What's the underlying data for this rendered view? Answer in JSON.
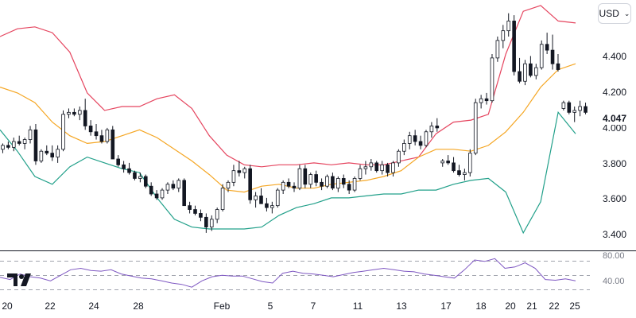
{
  "currency_selector": {
    "label": "USD"
  },
  "colors": {
    "upper_band": "#e5455f",
    "basis": "#f5a623",
    "lower_band": "#22a08a",
    "rsi": "#7e57c2",
    "candle": "#131722"
  },
  "chart_data": {
    "type": "candlestick",
    "x_ticks": [
      "20",
      "22",
      "24",
      "28",
      "Feb",
      "5",
      "7",
      "11",
      "13",
      "17",
      "18",
      "20",
      "21",
      "22",
      "25"
    ],
    "y_ticks": [
      "3.400",
      "3.600",
      "3.800",
      "4.000",
      "4.200",
      "4.400"
    ],
    "ylim": [
      3.36,
      4.62
    ],
    "last_price": "4.047",
    "candles_ohlc": [
      [
        3.86,
        3.89,
        3.84,
        3.88
      ],
      [
        3.88,
        3.9,
        3.86,
        3.87
      ],
      [
        3.87,
        3.92,
        3.85,
        3.9
      ],
      [
        3.9,
        3.93,
        3.88,
        3.89
      ],
      [
        3.89,
        3.92,
        3.86,
        3.91
      ],
      [
        3.91,
        3.98,
        3.89,
        3.96
      ],
      [
        3.96,
        3.99,
        3.78,
        3.8
      ],
      [
        3.8,
        3.86,
        3.79,
        3.85
      ],
      [
        3.85,
        3.88,
        3.83,
        3.84
      ],
      [
        3.84,
        3.88,
        3.8,
        3.82
      ],
      [
        3.82,
        3.88,
        3.79,
        3.86
      ],
      [
        3.86,
        4.06,
        3.85,
        4.04
      ],
      [
        4.04,
        4.07,
        4.02,
        4.05
      ],
      [
        4.05,
        4.07,
        4.03,
        4.04
      ],
      [
        4.04,
        4.08,
        4.01,
        4.06
      ],
      [
        4.06,
        4.12,
        3.96,
        3.98
      ],
      [
        3.98,
        4.01,
        3.93,
        3.95
      ],
      [
        3.95,
        3.99,
        3.91,
        3.93
      ],
      [
        3.93,
        3.96,
        3.89,
        3.9
      ],
      [
        3.9,
        3.97,
        3.89,
        3.96
      ],
      [
        3.96,
        3.98,
        3.84,
        3.81
      ],
      [
        3.81,
        3.83,
        3.77,
        3.78
      ],
      [
        3.78,
        3.8,
        3.74,
        3.76
      ],
      [
        3.76,
        3.79,
        3.73,
        3.74
      ],
      [
        3.74,
        3.75,
        3.7,
        3.71
      ],
      [
        3.71,
        3.74,
        3.69,
        3.72
      ],
      [
        3.72,
        3.73,
        3.66,
        3.67
      ],
      [
        3.67,
        3.69,
        3.62,
        3.63
      ],
      [
        3.63,
        3.65,
        3.6,
        3.61
      ],
      [
        3.61,
        3.66,
        3.6,
        3.65
      ],
      [
        3.65,
        3.69,
        3.63,
        3.68
      ],
      [
        3.68,
        3.7,
        3.65,
        3.66
      ],
      [
        3.66,
        3.71,
        3.64,
        3.7
      ],
      [
        3.7,
        3.71,
        3.6,
        3.57
      ],
      [
        3.57,
        3.59,
        3.53,
        3.55
      ],
      [
        3.55,
        3.57,
        3.52,
        3.53
      ],
      [
        3.53,
        3.55,
        3.49,
        3.51
      ],
      [
        3.51,
        3.53,
        3.43,
        3.46
      ],
      [
        3.46,
        3.52,
        3.44,
        3.5
      ],
      [
        3.5,
        3.56,
        3.48,
        3.55
      ],
      [
        3.55,
        3.68,
        3.54,
        3.66
      ],
      [
        3.66,
        3.7,
        3.64,
        3.69
      ],
      [
        3.69,
        3.78,
        3.67,
        3.75
      ],
      [
        3.75,
        3.8,
        3.72,
        3.74
      ],
      [
        3.74,
        3.77,
        3.71,
        3.76
      ],
      [
        3.76,
        3.78,
        3.58,
        3.6
      ],
      [
        3.6,
        3.64,
        3.56,
        3.62
      ],
      [
        3.62,
        3.66,
        3.6,
        3.58
      ],
      [
        3.58,
        3.61,
        3.54,
        3.56
      ],
      [
        3.56,
        3.59,
        3.53,
        3.57
      ],
      [
        3.57,
        3.66,
        3.56,
        3.65
      ],
      [
        3.65,
        3.7,
        3.63,
        3.69
      ],
      [
        3.69,
        3.71,
        3.66,
        3.67
      ],
      [
        3.67,
        3.69,
        3.64,
        3.66
      ],
      [
        3.66,
        3.78,
        3.65,
        3.76
      ],
      [
        3.76,
        3.78,
        3.66,
        3.68
      ],
      [
        3.68,
        3.74,
        3.66,
        3.73
      ],
      [
        3.73,
        3.75,
        3.67,
        3.69
      ],
      [
        3.69,
        3.71,
        3.65,
        3.67
      ],
      [
        3.67,
        3.73,
        3.66,
        3.72
      ],
      [
        3.72,
        3.74,
        3.65,
        3.66
      ],
      [
        3.66,
        3.72,
        3.64,
        3.71
      ],
      [
        3.71,
        3.73,
        3.66,
        3.68
      ],
      [
        3.68,
        3.7,
        3.63,
        3.65
      ],
      [
        3.65,
        3.72,
        3.64,
        3.71
      ],
      [
        3.71,
        3.78,
        3.7,
        3.76
      ],
      [
        3.76,
        3.8,
        3.73,
        3.77
      ],
      [
        3.77,
        3.81,
        3.75,
        3.79
      ],
      [
        3.79,
        3.8,
        3.74,
        3.75
      ],
      [
        3.75,
        3.8,
        3.73,
        3.78
      ],
      [
        3.78,
        3.79,
        3.72,
        3.74
      ],
      [
        3.74,
        3.8,
        3.72,
        3.79
      ],
      [
        3.79,
        3.86,
        3.77,
        3.85
      ],
      [
        3.85,
        3.91,
        3.83,
        3.89
      ],
      [
        3.89,
        3.95,
        3.86,
        3.93
      ],
      [
        3.93,
        3.96,
        3.88,
        3.9
      ],
      [
        3.9,
        3.93,
        3.86,
        3.88
      ],
      [
        3.88,
        3.96,
        3.87,
        3.95
      ],
      [
        3.95,
        4.0,
        3.92,
        3.98
      ],
      [
        3.98,
        4.02,
        3.95,
        3.97
      ],
      [
        3.79,
        3.81,
        3.77,
        3.8
      ],
      [
        3.8,
        3.83,
        3.78,
        3.79
      ],
      [
        3.79,
        3.82,
        3.74,
        3.75
      ],
      [
        3.75,
        3.78,
        3.72,
        3.73
      ],
      [
        3.73,
        3.76,
        3.7,
        3.74
      ],
      [
        3.74,
        3.86,
        3.72,
        3.84
      ],
      [
        3.84,
        4.12,
        3.83,
        4.1
      ],
      [
        4.1,
        4.14,
        4.07,
        4.12
      ],
      [
        4.12,
        4.15,
        4.09,
        4.11
      ],
      [
        4.11,
        4.35,
        4.1,
        4.33
      ],
      [
        4.33,
        4.44,
        4.31,
        4.42
      ],
      [
        4.42,
        4.5,
        4.38,
        4.47
      ],
      [
        4.47,
        4.56,
        4.44,
        4.52
      ],
      [
        4.52,
        4.55,
        4.24,
        4.26
      ],
      [
        4.26,
        4.33,
        4.2,
        4.21
      ],
      [
        4.21,
        4.32,
        4.19,
        4.3
      ],
      [
        4.3,
        4.34,
        4.23,
        4.24
      ],
      [
        4.24,
        4.3,
        4.22,
        4.28
      ],
      [
        4.28,
        4.42,
        4.27,
        4.4
      ],
      [
        4.4,
        4.46,
        4.35,
        4.37
      ],
      [
        4.37,
        4.45,
        4.27,
        4.3
      ],
      [
        4.3,
        4.35,
        4.26,
        4.27
      ],
      [
        4.07,
        4.11,
        4.06,
        4.1
      ],
      [
        4.1,
        4.11,
        4.04,
        4.05
      ],
      [
        4.05,
        4.08,
        4.0,
        4.06
      ],
      [
        4.06,
        4.11,
        4.03,
        4.08
      ],
      [
        4.08,
        4.1,
        4.04,
        4.05
      ]
    ],
    "bollinger_upper": [
      4.44,
      4.48,
      4.49,
      4.46,
      4.36,
      4.15,
      4.06,
      4.08,
      4.08,
      4.12,
      4.14,
      4.07,
      3.93,
      3.83,
      3.78,
      3.77,
      3.78,
      3.78,
      3.79,
      3.78,
      3.79,
      3.78,
      3.78,
      3.8,
      3.82,
      3.94,
      4.0,
      4.01,
      4.04,
      4.35,
      4.57,
      4.6,
      4.52,
      4.51
    ],
    "bollinger_basis": [
      4.18,
      4.15,
      4.1,
      4.0,
      3.93,
      3.89,
      3.9,
      3.93,
      3.96,
      3.92,
      3.86,
      3.8,
      3.73,
      3.65,
      3.64,
      3.67,
      3.68,
      3.66,
      3.66,
      3.68,
      3.69,
      3.7,
      3.72,
      3.75,
      3.82,
      3.86,
      3.86,
      3.85,
      3.88,
      3.95,
      4.05,
      4.18,
      4.27,
      4.3
    ],
    "bollinger_lower": [
      3.96,
      3.85,
      3.72,
      3.68,
      3.77,
      3.82,
      3.79,
      3.76,
      3.74,
      3.61,
      3.5,
      3.46,
      3.45,
      3.45,
      3.45,
      3.46,
      3.52,
      3.56,
      3.58,
      3.61,
      3.61,
      3.62,
      3.63,
      3.63,
      3.65,
      3.65,
      3.68,
      3.7,
      3.71,
      3.64,
      3.43,
      3.59,
      4.05,
      3.94
    ],
    "rsi": {
      "y_ticks": [
        "40.00",
        "80.00"
      ],
      "ylim": [
        25,
        82
      ],
      "values": [
        49,
        46,
        54,
        50,
        48,
        44,
        52,
        60,
        62,
        59,
        58,
        60,
        54,
        51,
        48,
        47,
        44,
        41,
        39,
        35,
        44,
        50,
        52,
        51,
        51,
        47,
        43,
        41,
        55,
        58,
        55,
        54,
        52,
        50,
        53,
        56,
        58,
        60,
        62,
        60,
        58,
        57,
        54,
        52,
        50,
        48,
        60,
        74,
        72,
        76,
        62,
        64,
        70,
        62,
        46,
        45,
        47,
        44
      ]
    }
  }
}
